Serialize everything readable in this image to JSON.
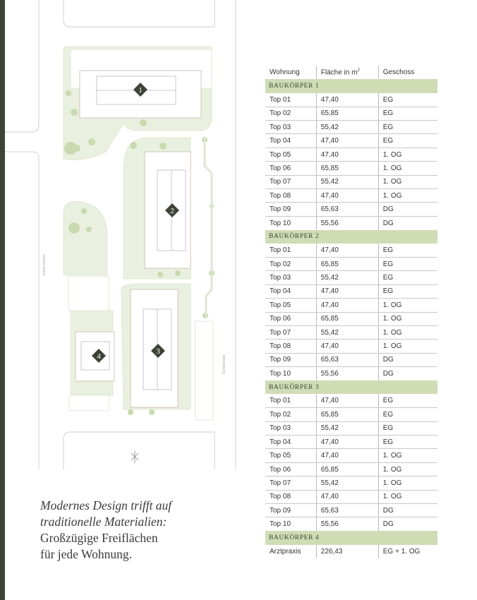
{
  "colors": {
    "accent_bar": "#3d4435",
    "section_bg": "#cfdcb4",
    "green_area": "#e6eedb",
    "tree": "#c9dab0"
  },
  "map": {
    "street_left": "Kasernstraße",
    "street_right": "Schollstraße",
    "buildings": [
      "1",
      "2",
      "3",
      "4"
    ],
    "north_icon": "compass-north-icon"
  },
  "table": {
    "headers": [
      "Wohnung",
      "Fläche in m",
      "2",
      "Geschoss"
    ],
    "sections": [
      {
        "title": "BAUKÖRPER 1",
        "rows": [
          [
            "Top 01",
            "47,40",
            "EG"
          ],
          [
            "Top 02",
            "65,85",
            "EG"
          ],
          [
            "Top 03",
            "55,42",
            "EG"
          ],
          [
            "Top 04",
            "47,40",
            "EG"
          ],
          [
            "Top 05",
            "47,40",
            "1. OG"
          ],
          [
            "Top 06",
            "65,85",
            "1. OG"
          ],
          [
            "Top 07",
            "55,42",
            "1. OG"
          ],
          [
            "Top 08",
            "47,40",
            "1. OG"
          ],
          [
            "Top 09",
            "65,63",
            "DG"
          ],
          [
            "Top 10",
            "55,56",
            "DG"
          ]
        ]
      },
      {
        "title": "BAUKÖRPER 2",
        "rows": [
          [
            "Top 01",
            "47,40",
            "EG"
          ],
          [
            "Top 02",
            "65,85",
            "EG"
          ],
          [
            "Top 03",
            "55,42",
            "EG"
          ],
          [
            "Top 04",
            "47,40",
            "EG"
          ],
          [
            "Top 05",
            "47,40",
            "1. OG"
          ],
          [
            "Top 06",
            "65,85",
            "1. OG"
          ],
          [
            "Top 07",
            "55,42",
            "1. OG"
          ],
          [
            "Top 08",
            "47,40",
            "1. OG"
          ],
          [
            "Top 09",
            "65,63",
            "DG"
          ],
          [
            "Top 10",
            "55,56",
            "DG"
          ]
        ]
      },
      {
        "title": "BAUKÖRPER 3",
        "rows": [
          [
            "Top 01",
            "47,40",
            "EG"
          ],
          [
            "Top 02",
            "65,85",
            "EG"
          ],
          [
            "Top 03",
            "55,42",
            "EG"
          ],
          [
            "Top 04",
            "47,40",
            "EG"
          ],
          [
            "Top 05",
            "47,40",
            "1. OG"
          ],
          [
            "Top 06",
            "65,85",
            "1. OG"
          ],
          [
            "Top 07",
            "55,42",
            "1. OG"
          ],
          [
            "Top 08",
            "47,40",
            "1. OG"
          ],
          [
            "Top 09",
            "65,63",
            "DG"
          ],
          [
            "Top 10",
            "55,56",
            "DG"
          ]
        ]
      },
      {
        "title": "BAUKÖRPER 4",
        "rows": [
          [
            "Arztpraxis",
            "226,43",
            "EG + 1. OG"
          ]
        ]
      }
    ]
  },
  "tagline": {
    "line1": "Modernes Design trifft auf",
    "line2": "traditionelle Materialien:",
    "line3": "Großzügige Freiflächen",
    "line4": "für jede Wohnung."
  }
}
